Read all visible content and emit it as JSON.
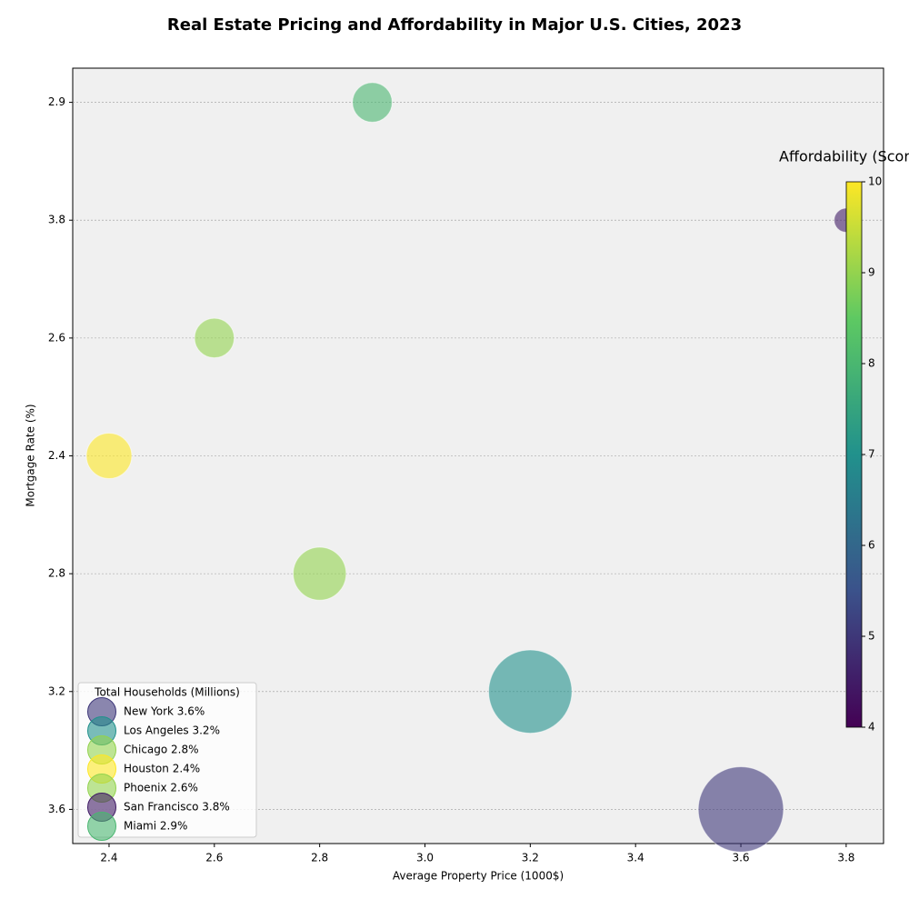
{
  "chart_data": {
    "type": "bubble",
    "title": "Real Estate Pricing and Affordability in Major U.S. Cities, 2023",
    "x_label": "Average Property Price (1000$)",
    "y_label": "Mortgage Rate (%)",
    "categories": [
      "3.6",
      "3.2",
      "2.8",
      "2.4",
      "2.6",
      "3.8",
      "2.9"
    ],
    "names": [
      "New York 3.6%",
      "Los Angeles 3.2%",
      "Chicago 2.8%",
      "Houston 2.4%",
      "Phoenix 2.6%",
      "San Francisco 3.8%",
      "Miami 2.9%"
    ],
    "x": [
      3.6,
      3.2,
      2.8,
      2.4,
      2.6,
      3.8,
      2.9
    ],
    "y": [
      "3.6",
      "3.2",
      "2.8",
      "2.4",
      "2.6",
      "3.8",
      "2.9"
    ],
    "sizes": [
      8.8,
      8.4,
      3.4,
      2.5,
      1.9,
      0.7,
      1.9
    ],
    "color_values": [
      5,
      7,
      9,
      10,
      9,
      4.5,
      8
    ],
    "colormap": "viridis",
    "alpha": 0.6,
    "xlim": [
      2.331,
      3.871
    ],
    "xticks": [
      {
        "value": 2.4,
        "label": "2.4"
      },
      {
        "value": 2.6,
        "label": "2.6"
      },
      {
        "value": 2.8,
        "label": "2.8"
      },
      {
        "value": 3.0,
        "label": "3.0"
      },
      {
        "value": 3.2,
        "label": "3.2"
      },
      {
        "value": 3.4,
        "label": "3.4"
      },
      {
        "value": 3.6,
        "label": "3.6"
      },
      {
        "value": 3.8,
        "label": "3.8"
      }
    ],
    "grid": true,
    "legend_title": "Total Households (Millions)",
    "legend_position": "lower left",
    "colorbar_label": "Affordability (Score)",
    "clim": [
      4,
      10
    ],
    "colorbar_ticks": [
      4,
      5,
      6,
      7,
      8,
      9,
      10
    ]
  }
}
